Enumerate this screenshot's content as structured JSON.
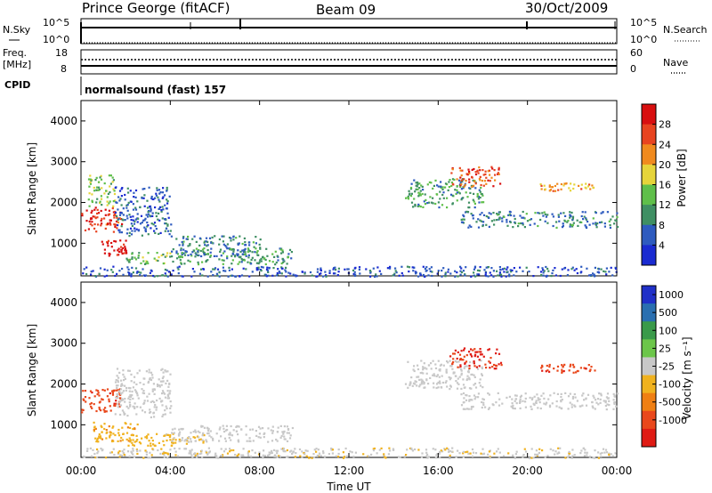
{
  "header": {
    "site": "Prince George (fitACF)",
    "beam": "Beam 09",
    "date": "30/Oct/2009"
  },
  "noise_panel": {
    "left_label": "N.Sky",
    "right_label": "N.Search",
    "left_ticks": [
      "10^5",
      "10^0"
    ],
    "right_ticks": [
      "10^5",
      "10^0"
    ]
  },
  "freq_panel": {
    "left_label": "Freq.",
    "left_unit": "[MHz]",
    "right_label": "Nave",
    "left_ticks": [
      "18",
      "8"
    ],
    "right_ticks": [
      "60",
      "0"
    ]
  },
  "cpid": {
    "label": "CPID",
    "value": "normalsound (fast) 157"
  },
  "x_axis": {
    "title": "Time UT",
    "ticks": [
      "00:00",
      "04:00",
      "08:00",
      "12:00",
      "16:00",
      "20:00",
      "00:00"
    ]
  },
  "colors": {
    "power_scale": [
      "#1a2bd1",
      "#2e5bbf",
      "#3f8f63",
      "#5fbf4a",
      "#e6d43a",
      "#f08a1e",
      "#e84420",
      "#d80f10"
    ],
    "velocity_scale": [
      "#2030c8",
      "#2a6fb0",
      "#3a9a4a",
      "#6cc64a",
      "#c8c8c8",
      "#f0b21f",
      "#ef7f13",
      "#e9481c",
      "#df1b14"
    ]
  },
  "chart_data": [
    {
      "type": "heatmap",
      "parameter": "Power",
      "ylabel": "Slant Range [km]",
      "colorbar_label": "Power [dB]",
      "colorbar_ticks": [
        "4",
        "8",
        "12",
        "16",
        "20",
        "24",
        "28"
      ],
      "clim": [
        0,
        30
      ],
      "x_range_hours": [
        0,
        24
      ],
      "ylim": [
        200,
        4500
      ],
      "y_ticks": [
        1000,
        2000,
        3000,
        4000
      ],
      "regions": [
        {
          "t": [
            0.0,
            1.8
          ],
          "range": [
            1300,
            1900
          ],
          "value": 26
        },
        {
          "t": [
            0.9,
            2.0
          ],
          "range": [
            700,
            1100
          ],
          "value": 28
        },
        {
          "t": [
            0.3,
            1.5
          ],
          "range": [
            1900,
            2700
          ],
          "value": 14
        },
        {
          "t": [
            1.5,
            4.0
          ],
          "range": [
            1200,
            2400
          ],
          "value": 6
        },
        {
          "t": [
            2.0,
            5.0
          ],
          "range": [
            500,
            800
          ],
          "value": 12
        },
        {
          "t": [
            4.0,
            8.0
          ],
          "range": [
            700,
            1200
          ],
          "value": 8
        },
        {
          "t": [
            5.0,
            9.5
          ],
          "range": [
            500,
            900
          ],
          "value": 10
        },
        {
          "t": [
            0.0,
            24.0
          ],
          "range": [
            200,
            450
          ],
          "value": 5
        },
        {
          "t": [
            14.5,
            18.0
          ],
          "range": [
            1900,
            2600
          ],
          "value": 10
        },
        {
          "t": [
            16.5,
            18.8
          ],
          "range": [
            2400,
            2900
          ],
          "value": 24
        },
        {
          "t": [
            17.0,
            24.0
          ],
          "range": [
            1400,
            1800
          ],
          "value": 8
        },
        {
          "t": [
            20.5,
            23.0
          ],
          "range": [
            2300,
            2500
          ],
          "value": 20
        }
      ]
    },
    {
      "type": "heatmap",
      "parameter": "Velocity",
      "ylabel": "Slant Range [km]",
      "colorbar_label": "Velocity [m s⁻¹]",
      "colorbar_ticks": [
        "1000",
        "500",
        "100",
        "25",
        "-25",
        "-100",
        "-500",
        "-1000"
      ],
      "clim": [
        -1000,
        1000
      ],
      "x_range_hours": [
        0,
        24
      ],
      "ylim": [
        200,
        4500
      ],
      "y_ticks": [
        1000,
        2000,
        3000,
        4000
      ],
      "regions": [
        {
          "t": [
            0.0,
            1.8
          ],
          "range": [
            1300,
            1900
          ],
          "value": -700
        },
        {
          "t": [
            0.5,
            2.5
          ],
          "range": [
            600,
            1100
          ],
          "value": -300
        },
        {
          "t": [
            1.5,
            4.0
          ],
          "range": [
            1200,
            2400
          ],
          "value": 0
        },
        {
          "t": [
            2.0,
            5.5
          ],
          "range": [
            500,
            800
          ],
          "value": -200
        },
        {
          "t": [
            4.0,
            9.5
          ],
          "range": [
            600,
            1000
          ],
          "value": 0
        },
        {
          "t": [
            0.0,
            24.0
          ],
          "range": [
            200,
            450
          ],
          "value": -60
        },
        {
          "t": [
            14.5,
            18.0
          ],
          "range": [
            1900,
            2600
          ],
          "value": 0
        },
        {
          "t": [
            16.5,
            18.8
          ],
          "range": [
            2400,
            2900
          ],
          "value": -800
        },
        {
          "t": [
            17.0,
            24.0
          ],
          "range": [
            1400,
            1800
          ],
          "value": 0
        },
        {
          "t": [
            20.5,
            23.0
          ],
          "range": [
            2300,
            2500
          ],
          "value": -700
        }
      ]
    }
  ]
}
